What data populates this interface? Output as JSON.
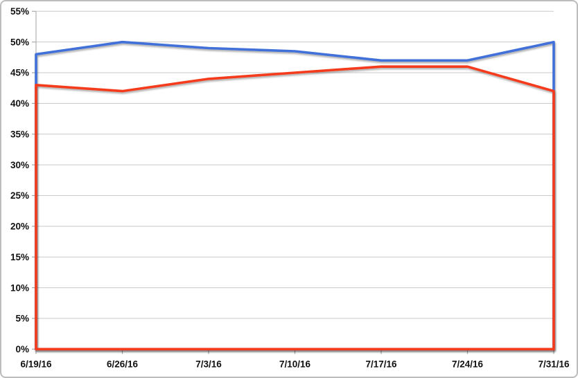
{
  "chart_data": {
    "type": "line",
    "title": "",
    "xlabel": "",
    "ylabel": "",
    "categories": [
      "6/19/16",
      "6/26/16",
      "7/3/16",
      "7/10/16",
      "7/17/16",
      "7/24/16",
      "7/31/16"
    ],
    "series": [
      {
        "name": "blue",
        "color": "#4170d8",
        "values": [
          48,
          50,
          49,
          48.5,
          47,
          47,
          50
        ]
      },
      {
        "name": "red",
        "color": "#f43b1f",
        "values": [
          43,
          42,
          44,
          45,
          46,
          46,
          42
        ]
      }
    ],
    "ylim": [
      0,
      55
    ],
    "ytick_step": 5,
    "y_tick_labels": [
      "0%",
      "5%",
      "10%",
      "15%",
      "20%",
      "25%",
      "30%",
      "35%",
      "40%",
      "45%",
      "50%",
      "55%"
    ],
    "grid": true,
    "legend": "none",
    "closed_outline": true,
    "colors": {
      "gridline": "#c9c9c9",
      "axis": "#b0b0b0",
      "tick": "#a6a6a6",
      "label_text": "#111111",
      "frame_border": "#bcbcbc",
      "background": "#ffffff"
    }
  }
}
